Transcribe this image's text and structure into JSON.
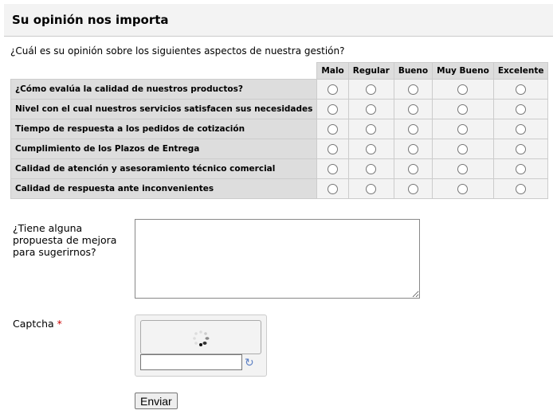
{
  "title": "Su opinión nos importa",
  "question": "¿Cuál es su opinión sobre los siguientes aspectos de nuestra gestión?",
  "columns": [
    "Malo",
    "Regular",
    "Bueno",
    "Muy Bueno",
    "Excelente"
  ],
  "rows": [
    "¿Cómo evalúa la calidad de nuestros productos?",
    "Nivel con el cual nuestros servicios satisfacen sus necesidades",
    "Tiempo de respuesta a los pedidos de cotización",
    "Cumplimiento de los Plazos de Entrega",
    "Calidad de atención y asesoramiento técnico comercial",
    "Calidad de respuesta ante inconvenientes"
  ],
  "suggestion_label": "¿Tiene alguna propuesta de mejora para sugerirnos?",
  "suggestion_value": "",
  "captcha_label": "Captcha",
  "required_mark": "*",
  "captcha_value": "",
  "submit_label": "Enviar"
}
